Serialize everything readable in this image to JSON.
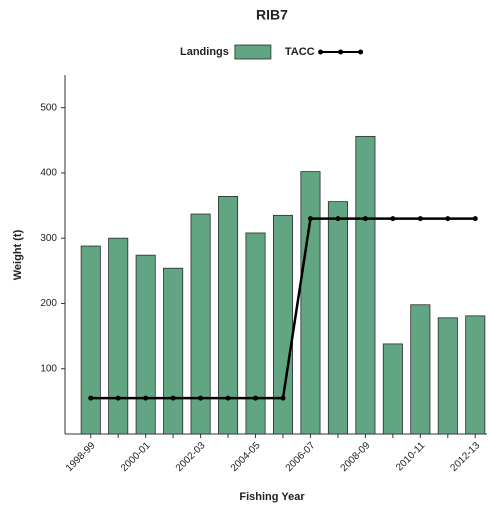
{
  "chart_data": {
    "type": "bar",
    "title": "RIB7",
    "x_label": "Fishing Year",
    "y_label": "Weight (t)",
    "categories": [
      "1998-99",
      null,
      "2000-01",
      null,
      "2002-03",
      null,
      "2004-05",
      null,
      "2006-07",
      null,
      "2008-09",
      null,
      "2010-11",
      null,
      "2012-13"
    ],
    "series": [
      {
        "name": "Landings",
        "color": "#62a582",
        "values": [
          288,
          300,
          274,
          254,
          337,
          364,
          308,
          335,
          402,
          356,
          456,
          138,
          198,
          178,
          181
        ]
      },
      {
        "name": "TACC",
        "color": "#000000",
        "type": "line",
        "values": [
          55,
          55,
          55,
          55,
          55,
          55,
          55,
          55,
          330,
          330,
          330,
          330,
          330,
          330,
          330
        ]
      }
    ],
    "ylim": [
      0,
      550
    ],
    "yticks": [
      100,
      200,
      300,
      400,
      500
    ],
    "grid": false
  }
}
